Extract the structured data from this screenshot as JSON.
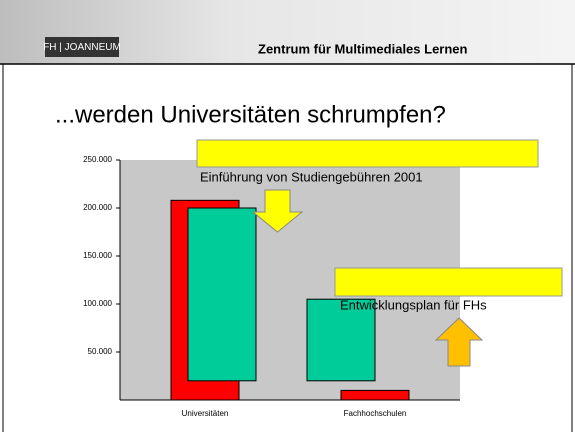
{
  "header": {
    "logo": "FH | JOANNEUM",
    "title": "Zentrum für Multimediales Lernen"
  },
  "slide_title": "...werden Universitäten schrumpfen?",
  "chart_data": {
    "type": "bar",
    "categories": [
      "Universitäten",
      "Fachhochschulen"
    ],
    "values": [
      208000,
      10000
    ],
    "color": "#ff0000",
    "overlays": [
      {
        "low": 20000,
        "high": 200000
      },
      {
        "low": 20000,
        "high": 105000
      }
    ],
    "overlay_color": "#00cc99",
    "annotations": [
      "Einführung von Studiengebühren 2001",
      "Entwicklungsplan für FHs"
    ],
    "ylim": [
      0,
      250000
    ],
    "yticks": [
      {
        "value": 50000,
        "label": "50.000"
      },
      {
        "value": 100000,
        "label": "100.000"
      },
      {
        "value": 150000,
        "label": "150.000"
      },
      {
        "value": 200000,
        "label": "200.000"
      },
      {
        "value": 250000,
        "label": "250.000"
      }
    ]
  }
}
